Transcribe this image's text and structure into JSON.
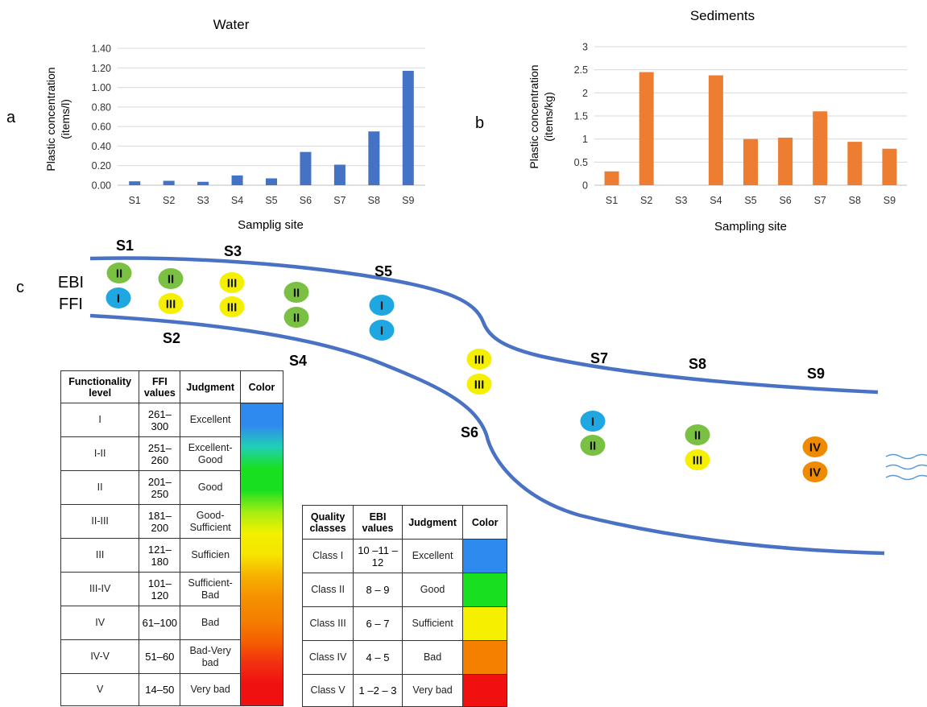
{
  "panel_labels": {
    "a": "a",
    "b": "b",
    "c": "c"
  },
  "chart_data": [
    {
      "type": "bar",
      "title": "Water",
      "xlabel": "Samplig site",
      "ylabel_line1": "Plastic concentration",
      "ylabel_line2": "(items/l)",
      "categories": [
        "S1",
        "S2",
        "S3",
        "S4",
        "S5",
        "S6",
        "S7",
        "S8",
        "S9"
      ],
      "values": [
        0.04,
        0.045,
        0.035,
        0.1,
        0.07,
        0.34,
        0.21,
        0.55,
        1.17
      ],
      "ylim": [
        0,
        1.4
      ],
      "yticks": [
        "0.00",
        "0.20",
        "0.40",
        "0.60",
        "0.80",
        "1.00",
        "1.20",
        "1.40"
      ],
      "grid": true,
      "color": "#4472c4"
    },
    {
      "type": "bar",
      "title": "Sediments",
      "xlabel": "Sampling site",
      "ylabel_line1": "Plastic concentration",
      "ylabel_line2": "(items/kg)",
      "categories": [
        "S1",
        "S2",
        "S3",
        "S4",
        "S5",
        "S6",
        "S7",
        "S8",
        "S9"
      ],
      "values": [
        0.3,
        2.45,
        0,
        2.38,
        1.0,
        1.03,
        1.6,
        0.94,
        0.79
      ],
      "ylim": [
        0,
        3
      ],
      "yticks": [
        "0",
        "0.5",
        "1",
        "1.5",
        "2",
        "2.5",
        "3"
      ],
      "grid": true,
      "color": "#ed7d31"
    }
  ],
  "river": {
    "row_labels": {
      "ebi": "EBI",
      "ffi": "FFI"
    },
    "sites": {
      "S1": "S1",
      "S2": "S2",
      "S3": "S3",
      "S4": "S4",
      "S5": "S5",
      "S6": "S6",
      "S7": "S7",
      "S8": "S8",
      "S9": "S9"
    },
    "markers": [
      {
        "site": "S1",
        "ebi": "II",
        "ffi": "I"
      },
      {
        "site": "S2",
        "ebi": "II",
        "ffi": "III"
      },
      {
        "site": "S3",
        "ebi": "III",
        "ffi": "III"
      },
      {
        "site": "S4",
        "ebi": "II",
        "ffi": "II"
      },
      {
        "site": "S5",
        "ebi": "I",
        "ffi": "I"
      },
      {
        "site": "S6",
        "ebi": "III",
        "ffi": "III"
      },
      {
        "site": "S7",
        "ebi": "I",
        "ffi": "II"
      },
      {
        "site": "S8",
        "ebi": "II",
        "ffi": "III"
      },
      {
        "site": "S9",
        "ebi": "IV",
        "ffi": "IV"
      }
    ],
    "class_colors": {
      "I": "#1ea7e1",
      "II": "#7ac143",
      "III": "#f5f000",
      "IV": "#f08a00"
    },
    "river_color": "#4a72c4",
    "wave_color": "#5b9bd5"
  },
  "ffi_table": {
    "headers": [
      "Functionality level",
      "FFI values",
      "Judgment",
      "Color"
    ],
    "rows": [
      {
        "level": "I",
        "values": "261– 300",
        "judgment": "Excellent"
      },
      {
        "level": "I-II",
        "values": "251– 260",
        "judgment": "Excellent-Good"
      },
      {
        "level": "II",
        "values": "201– 250",
        "judgment": "Good"
      },
      {
        "level": "II-III",
        "values": "181– 200",
        "judgment": "Good-Sufficient"
      },
      {
        "level": "III",
        "values": "121– 180",
        "judgment": "Sufficien"
      },
      {
        "level": "III-IV",
        "values": "101– 120",
        "judgment": "Sufficient-Bad"
      },
      {
        "level": "IV",
        "values": "61–100",
        "judgment": "Bad"
      },
      {
        "level": "IV-V",
        "values": "51–60",
        "judgment": "Bad-Very bad"
      },
      {
        "level": "V",
        "values": "14–50",
        "judgment": "Very bad"
      }
    ],
    "gradient": [
      "#2f8af0",
      "#2f8af0",
      "#1fd0b4",
      "#18e020",
      "#18e020",
      "#a2ee12",
      "#f3f000",
      "#f6e400",
      "#f7b000",
      "#f59000",
      "#f58000",
      "#f56000",
      "#f23010",
      "#f01010",
      "#f01010"
    ]
  },
  "ebi_table": {
    "headers": [
      "Quality classes",
      "EBI values",
      "Judgment",
      "Color"
    ],
    "rows": [
      {
        "cls": "Class I",
        "values": "10 –11 –12",
        "judgment": "Excellent",
        "color": "#2f8af0"
      },
      {
        "cls": "Class II",
        "values": "8 – 9",
        "judgment": "Good",
        "color": "#18e020"
      },
      {
        "cls": "Class III",
        "values": "6 – 7",
        "judgment": "Sufficient",
        "color": "#f5f000"
      },
      {
        "cls": "Class IV",
        "values": "4 – 5",
        "judgment": "Bad",
        "color": "#f58000"
      },
      {
        "cls": "Class V",
        "values": "1 –2 – 3",
        "judgment": "Very bad",
        "color": "#f01010"
      }
    ]
  }
}
